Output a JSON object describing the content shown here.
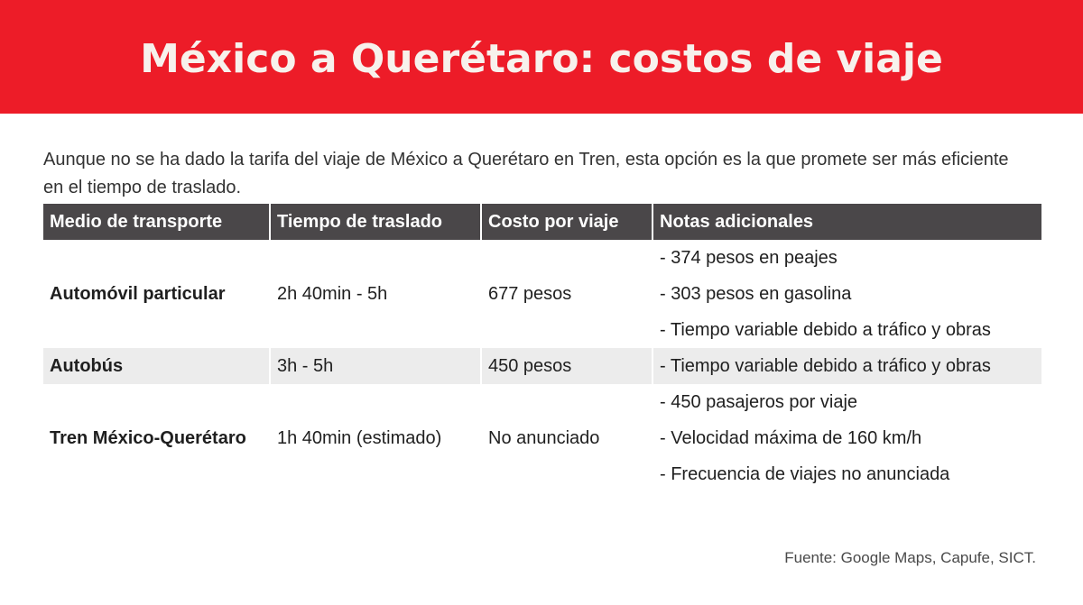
{
  "title": "México a Querétaro: costos de viaje",
  "intro": "Aunque no se ha dado la tarifa del viaje de México a Querétaro en Tren, esta opción es la que promete ser más eficiente en el tiempo de traslado.",
  "table": {
    "headers": [
      "Medio de transporte",
      "Tiempo de traslado",
      "Costo por viaje",
      "Notas adicionales"
    ],
    "rows": [
      {
        "mode": "Automóvil particular",
        "time": "2h 40min - 5h",
        "cost": "677 pesos",
        "notes": [
          "- 374 pesos en peajes",
          "- 303 pesos en gasolina",
          "- Tiempo variable debido a tráfico y obras"
        ]
      },
      {
        "mode": "Autobús",
        "time": "3h - 5h",
        "cost": "450 pesos",
        "notes": [
          "- Tiempo variable debido a tráfico y obras"
        ]
      },
      {
        "mode": "Tren México-Querétaro",
        "time": "1h 40min (estimado)",
        "cost": "No anunciado",
        "notes": [
          "- 450 pasajeros por viaje",
          "- Velocidad máxima de 160 km/h",
          "- Frecuencia de viajes no anunciada"
        ]
      }
    ]
  },
  "source": "Fuente: Google Maps, Capufe, SICT.",
  "colors": {
    "banner": "#ed1c28",
    "header_row": "#4a4749",
    "highlight_row": "#ececec"
  }
}
